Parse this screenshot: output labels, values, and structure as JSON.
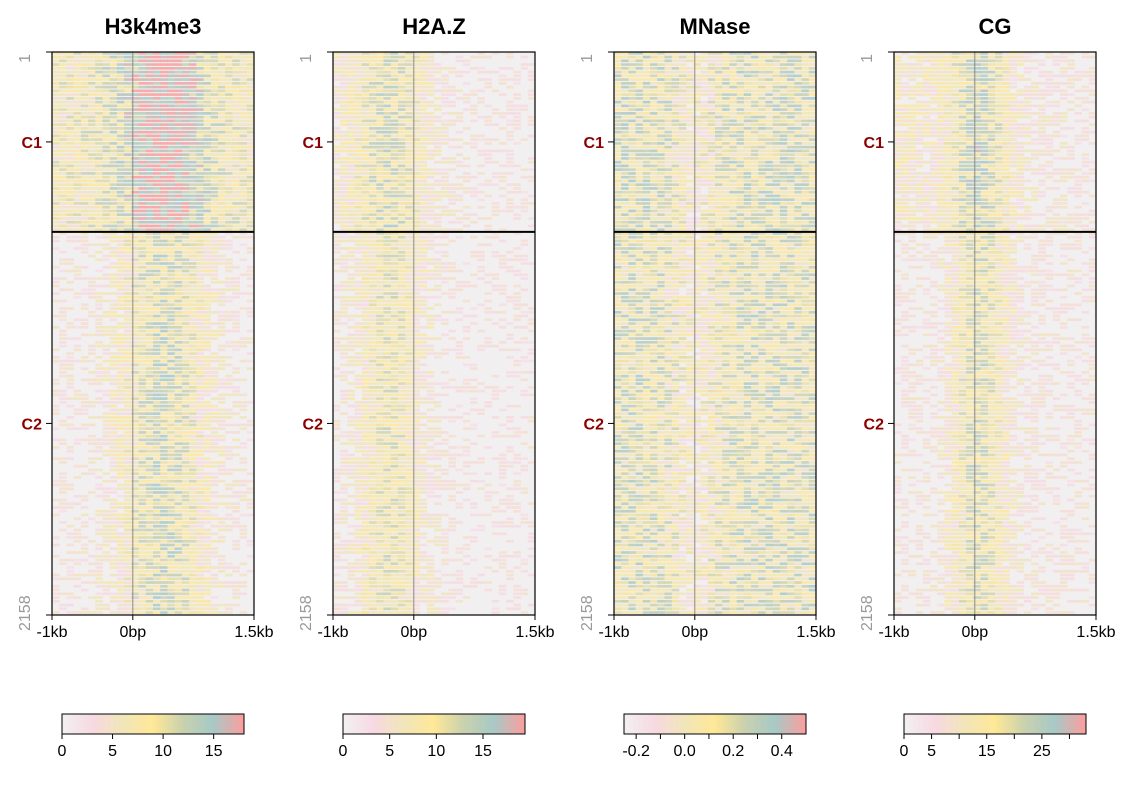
{
  "chart_data": {
    "type": "heatmap",
    "clusters": [
      "C1",
      "C2"
    ],
    "cluster_label_color": "#8B0000",
    "cluster_boundary_row": 690,
    "rows": {
      "first_label": "1",
      "last_label": "2158",
      "first": 1,
      "last": 2158
    },
    "x_ticks": [
      "-1kb",
      "0bp",
      "1.5kb"
    ],
    "x_range_bp": [
      -1000,
      1500
    ],
    "palette": [
      "#F2EFF0",
      "#F7D9E2",
      "#F0E6B8",
      "#FFE898",
      "#C9D1AE",
      "#A7C9C6",
      "#F7A09F"
    ],
    "panels": [
      {
        "title": "H3k4me3",
        "colorbar": {
          "min": 0,
          "max": 18,
          "ticks": [
            "0",
            "5",
            "10",
            "15"
          ],
          "tick_values": [
            0,
            5,
            10,
            15
          ]
        }
      },
      {
        "title": "H2A.Z",
        "colorbar": {
          "min": 0,
          "max": 19.5,
          "ticks": [
            "0",
            "5",
            "10",
            "15"
          ],
          "tick_values": [
            0,
            5,
            10,
            15
          ]
        }
      },
      {
        "title": "MNase",
        "colorbar": {
          "min": -0.25,
          "max": 0.5,
          "ticks": [
            "-0.2",
            "0.0",
            "0.2",
            "0.4"
          ],
          "tick_values": [
            -0.2,
            0.0,
            0.2,
            0.4
          ],
          "minor_ticks": [
            -0.1,
            0.1,
            0.3
          ]
        }
      },
      {
        "title": "CG",
        "colorbar": {
          "min": 0,
          "max": 33,
          "ticks": [
            "0",
            "5",
            "15",
            "25"
          ],
          "tick_values": [
            0,
            5,
            15,
            25
          ],
          "minor_ticks": [
            10,
            20,
            30
          ]
        }
      }
    ]
  }
}
